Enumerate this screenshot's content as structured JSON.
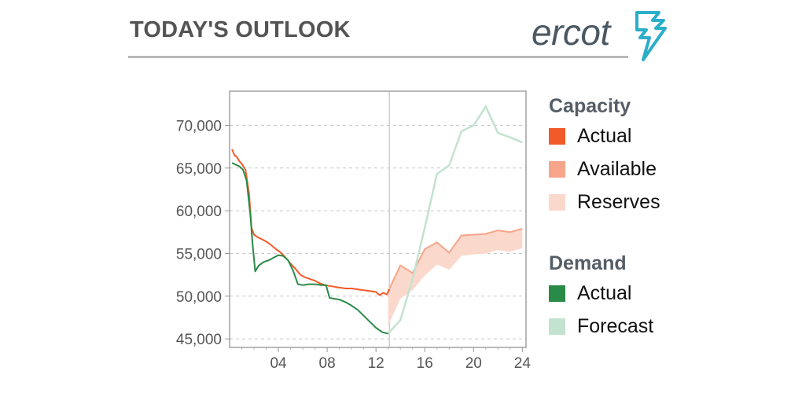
{
  "header": {
    "title": "TODAY'S OUTLOOK",
    "logo_text": "ercot"
  },
  "colors": {
    "capacity_actual": "#f15a29",
    "capacity_available": "#f7a58a",
    "capacity_reserves": "#fbd8cc",
    "demand_actual": "#2a8a47",
    "demand_forecast": "#c3e2cf",
    "logo_accent": "#2aaec9",
    "logo_text": "#4b5863"
  },
  "legend": {
    "capacity_heading": "Capacity",
    "capacity_items": [
      {
        "label": "Actual",
        "color": "#f15a29"
      },
      {
        "label": "Available",
        "color": "#f7a58a"
      },
      {
        "label": "Reserves",
        "color": "#fbd8cc"
      }
    ],
    "demand_heading": "Demand",
    "demand_items": [
      {
        "label": "Actual",
        "color": "#2a8a47"
      },
      {
        "label": "Forecast",
        "color": "#c3e2cf"
      }
    ]
  },
  "chart_data": {
    "type": "line",
    "title": "",
    "xlabel": "",
    "ylabel": "",
    "xlim": [
      0,
      24.3
    ],
    "ylim": [
      44000,
      74000
    ],
    "x_ticks": [
      4,
      8,
      12,
      16,
      20,
      24
    ],
    "x_tick_labels": [
      "04",
      "08",
      "12",
      "16",
      "20",
      "24"
    ],
    "y_ticks": [
      45000,
      50000,
      55000,
      60000,
      65000,
      70000
    ],
    "y_tick_labels": [
      "45,000",
      "50,000",
      "55,000",
      "60,000",
      "65,000",
      "70,000"
    ],
    "grid": "horizontal-dashed",
    "current_hour": 13.1,
    "series": [
      {
        "name": "Capacity Actual",
        "x": [
          0.2,
          0.4,
          0.6,
          0.8,
          1.0,
          1.3,
          1.6,
          1.8,
          2.0,
          2.3,
          2.6,
          3.0,
          3.4,
          3.8,
          4.2,
          4.6,
          5.0,
          5.4,
          5.8,
          6.2,
          6.6,
          7.0,
          7.4,
          7.8,
          8.2,
          8.6,
          9.0,
          9.5,
          10.0,
          10.5,
          11.0,
          11.5,
          12.0,
          12.3,
          12.6,
          12.9,
          13.1
        ],
        "values": [
          67200,
          66500,
          66300,
          65800,
          65500,
          64800,
          62000,
          58000,
          57200,
          56900,
          56700,
          56400,
          56000,
          55500,
          55100,
          54500,
          53800,
          53200,
          52500,
          52200,
          52000,
          51800,
          51500,
          51300,
          51200,
          51100,
          51000,
          50900,
          50900,
          50800,
          50700,
          50600,
          50500,
          50100,
          50400,
          50200,
          50800
        ]
      },
      {
        "name": "Demand Actual",
        "x": [
          0.2,
          0.5,
          0.8,
          1.1,
          1.4,
          1.7,
          1.9,
          2.1,
          2.4,
          2.8,
          3.2,
          3.6,
          4.0,
          4.4,
          4.8,
          5.2,
          5.6,
          6.0,
          6.5,
          7.0,
          7.5,
          7.9,
          8.2,
          8.6,
          9.0,
          9.5,
          10.0,
          10.5,
          11.0,
          11.5,
          12.0,
          12.5,
          13.0
        ],
        "values": [
          65600,
          65400,
          65200,
          64800,
          63500,
          59500,
          55800,
          52900,
          53600,
          54000,
          54200,
          54500,
          54800,
          54700,
          54200,
          53000,
          51400,
          51300,
          51400,
          51400,
          51300,
          51300,
          49800,
          49700,
          49600,
          49300,
          48900,
          48400,
          47700,
          47000,
          46300,
          45800,
          45600
        ]
      },
      {
        "name": "Capacity Available",
        "x": [
          13.0,
          14.0,
          15.0,
          16.0,
          17.0,
          18.0,
          19.0,
          20.0,
          21.0,
          22.0,
          23.0,
          24.0
        ],
        "values": [
          50600,
          53600,
          52700,
          55500,
          56300,
          55100,
          57100,
          57200,
          57300,
          57700,
          57500,
          57900
        ]
      },
      {
        "name": "Capacity Reserves Lower",
        "x": [
          13.0,
          14.0,
          15.0,
          16.0,
          17.0,
          18.0,
          19.0,
          20.0,
          21.0,
          22.0,
          23.0,
          24.0
        ],
        "values": [
          46600,
          49700,
          50700,
          52400,
          53700,
          53100,
          54700,
          54900,
          55000,
          55400,
          55200,
          55600
        ]
      },
      {
        "name": "Demand Forecast",
        "x": [
          13.0,
          14.0,
          15.0,
          16.0,
          17.0,
          18.0,
          19.0,
          20.0,
          21.0,
          22.0,
          23.0,
          24.0
        ],
        "values": [
          45600,
          47200,
          52000,
          58000,
          64300,
          65300,
          69300,
          70000,
          72200,
          69100,
          68600,
          68000
        ]
      }
    ]
  }
}
